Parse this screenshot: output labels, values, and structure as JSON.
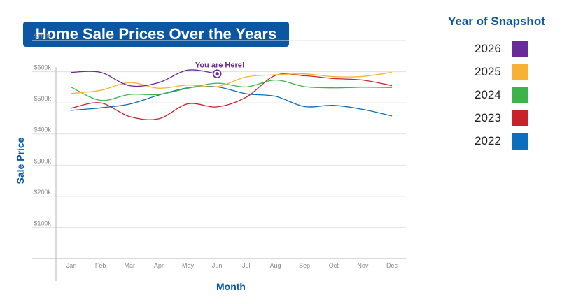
{
  "chart_data": {
    "type": "line",
    "title": "Home Sale Prices Over the Years",
    "xlabel": "Month",
    "ylabel": "Sale Price",
    "ylim": [
      0,
      700000
    ],
    "yticks": [
      100000,
      200000,
      300000,
      400000,
      500000,
      600000,
      700000
    ],
    "ytick_labels": [
      "$100k",
      "$200k",
      "$300k",
      "$400k",
      "$500k",
      "$600k",
      "$700k"
    ],
    "grid": true,
    "legend_title": "Year of Snapshot",
    "legend_position": "right",
    "annotation": {
      "label": "You are Here!",
      "x": "Jun",
      "y": 593000,
      "series": "2026"
    },
    "categories": [
      "Jan",
      "Feb",
      "Mar",
      "Apr",
      "May",
      "Jun",
      "Jul",
      "Aug",
      "Sep",
      "Oct",
      "Nov",
      "Dec"
    ],
    "series": [
      {
        "name": "2026",
        "color": "#6a2b9a",
        "values": [
          598000,
          598000,
          555000,
          565000,
          605000,
          593000,
          null,
          null,
          null,
          null,
          null,
          null
        ]
      },
      {
        "name": "2025",
        "color": "#f7b235",
        "values": [
          530000,
          540000,
          565000,
          547000,
          557000,
          552000,
          583000,
          590000,
          593000,
          584000,
          585000,
          598000
        ]
      },
      {
        "name": "2024",
        "color": "#3bb54a",
        "values": [
          550000,
          508000,
          527000,
          527000,
          547000,
          563000,
          551000,
          573000,
          552000,
          548000,
          550000,
          549000
        ]
      },
      {
        "name": "2023",
        "color": "#c8232c",
        "values": [
          483000,
          500000,
          456000,
          449000,
          497000,
          487000,
          518000,
          588000,
          587000,
          578000,
          573000,
          555000
        ]
      },
      {
        "name": "2022",
        "color": "#0b6fbd",
        "values": [
          476000,
          484000,
          496000,
          525000,
          548000,
          551000,
          529000,
          521000,
          488000,
          492000,
          479000,
          458000
        ]
      }
    ]
  }
}
